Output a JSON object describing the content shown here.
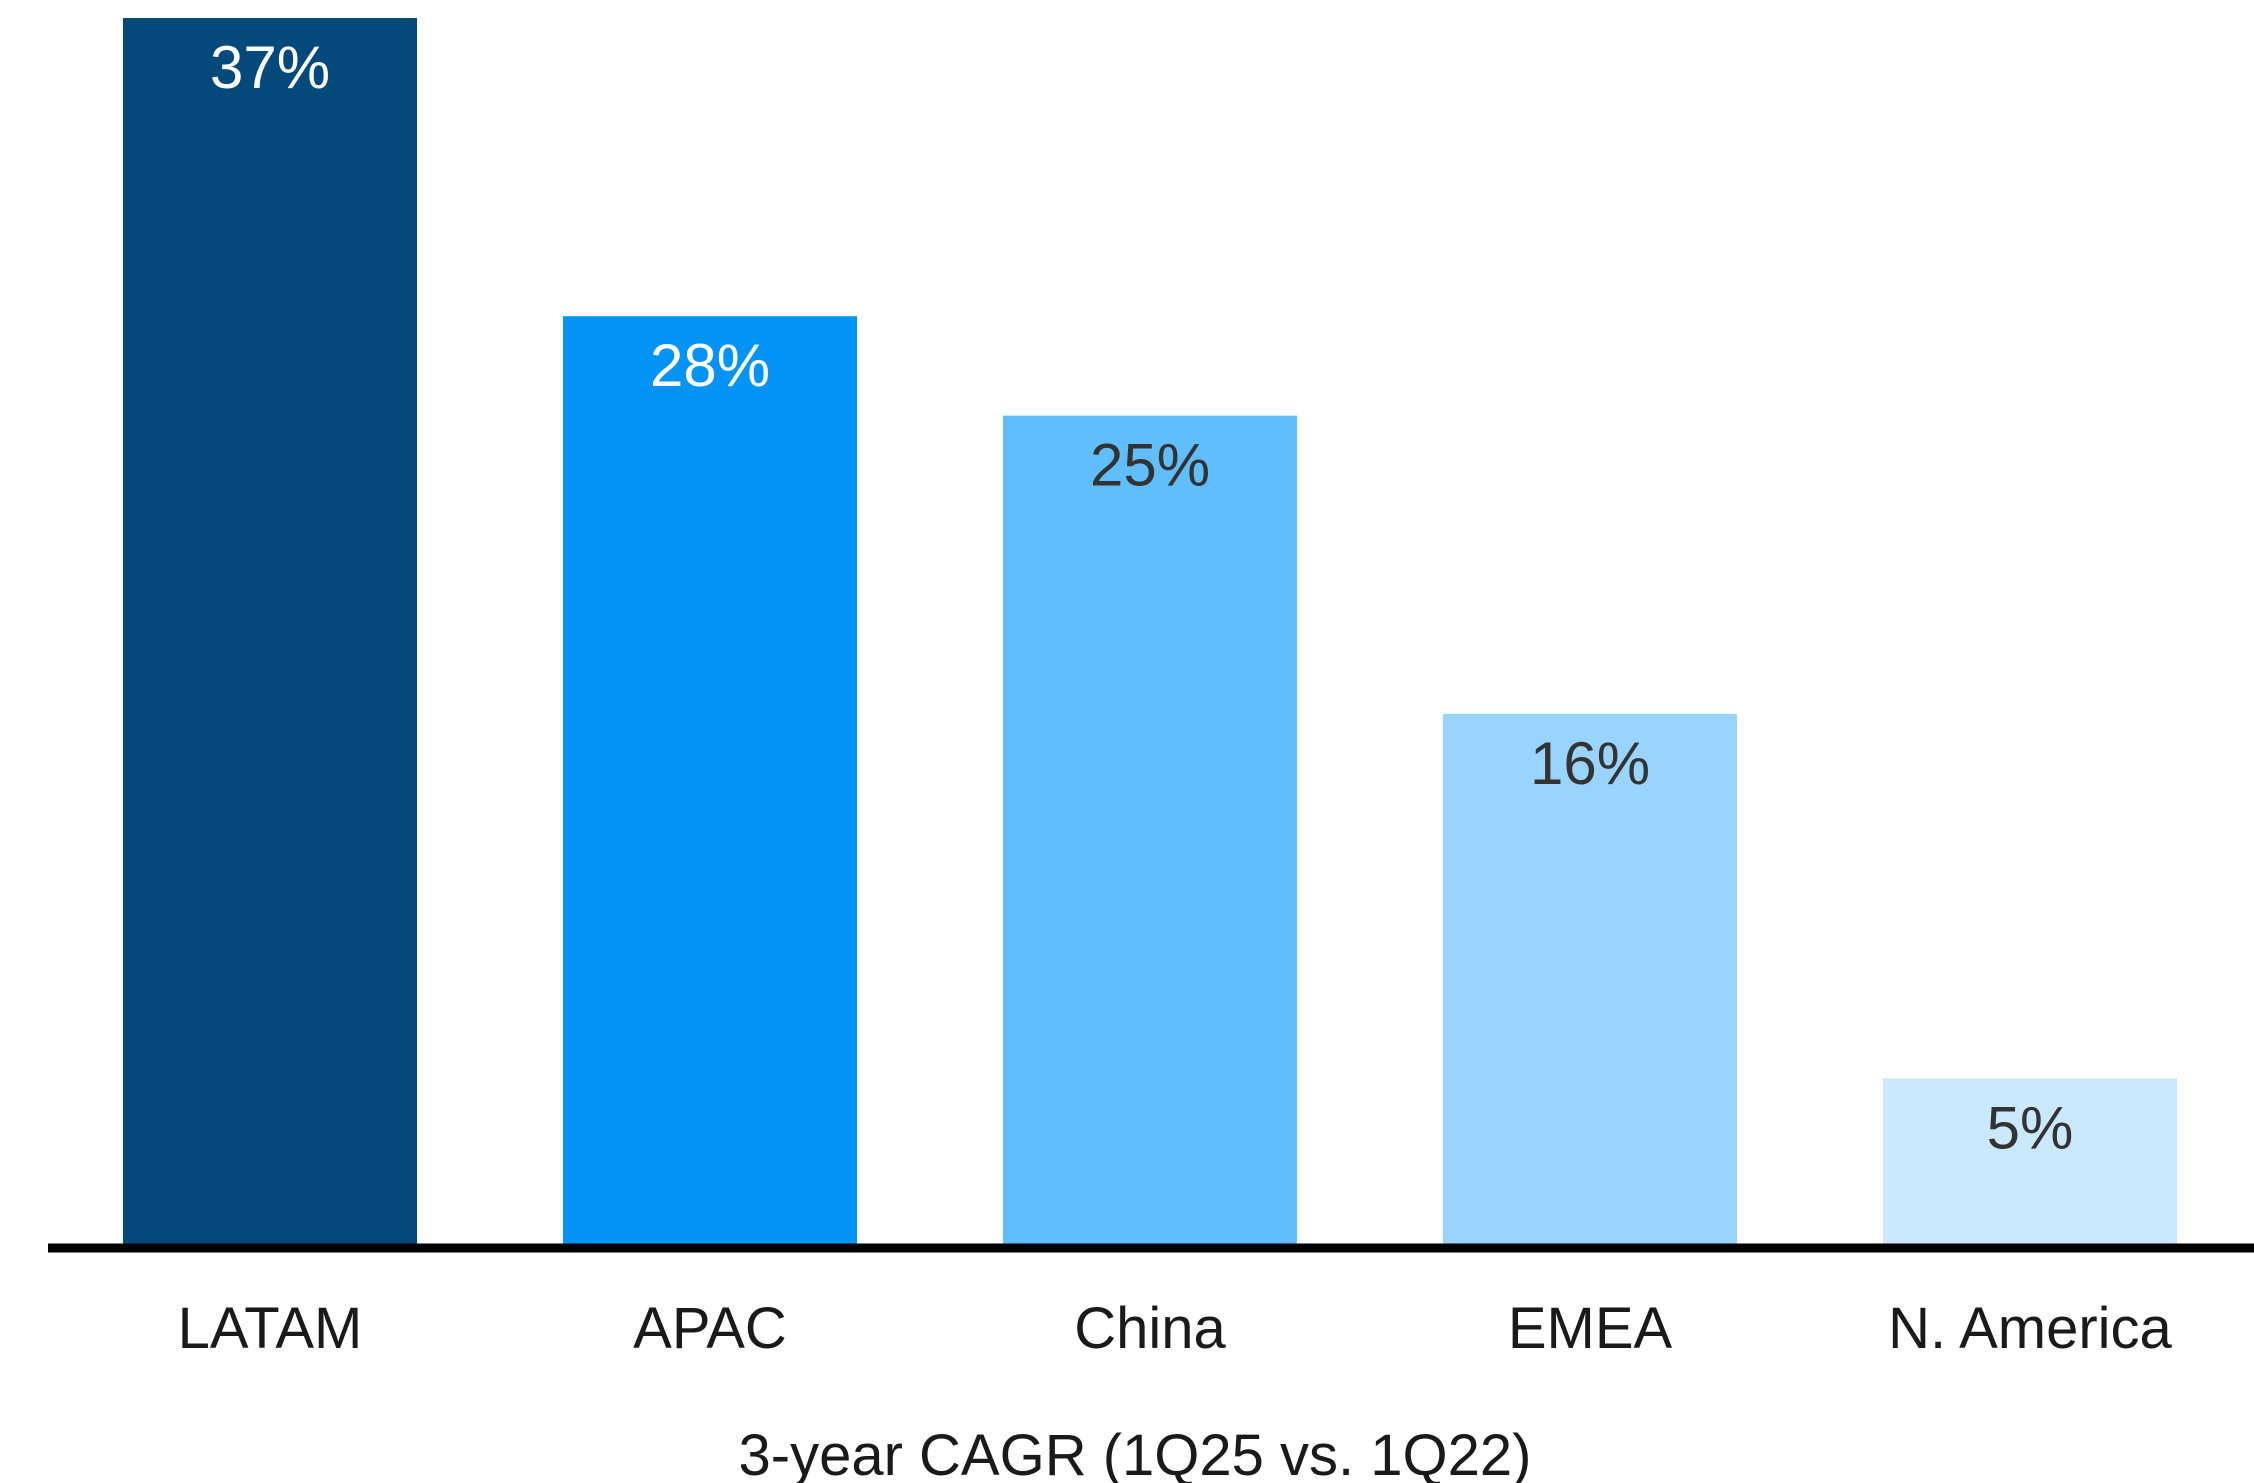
{
  "chart_data": {
    "type": "bar",
    "title": "",
    "xlabel": "3-year CAGR (1Q25 vs. 1Q22)",
    "ylabel": "",
    "ylim": [
      0,
      37
    ],
    "grid": false,
    "legend": "none",
    "categories": [
      "LATAM",
      "APAC",
      "China",
      "EMEA",
      "N. America"
    ],
    "values": [
      37,
      28,
      25,
      16,
      5
    ],
    "value_labels": [
      "37%",
      "28%",
      "25%",
      "16%",
      "5%"
    ],
    "bar_colors": [
      "#03497A",
      "#0393F5",
      "#61BEFD",
      "#98D4FE",
      "#CBE9FE"
    ],
    "label_colors": [
      "#ffffff",
      "#ffffff",
      "#333333",
      "#333333",
      "#333333"
    ],
    "axis_color": "#000000"
  }
}
